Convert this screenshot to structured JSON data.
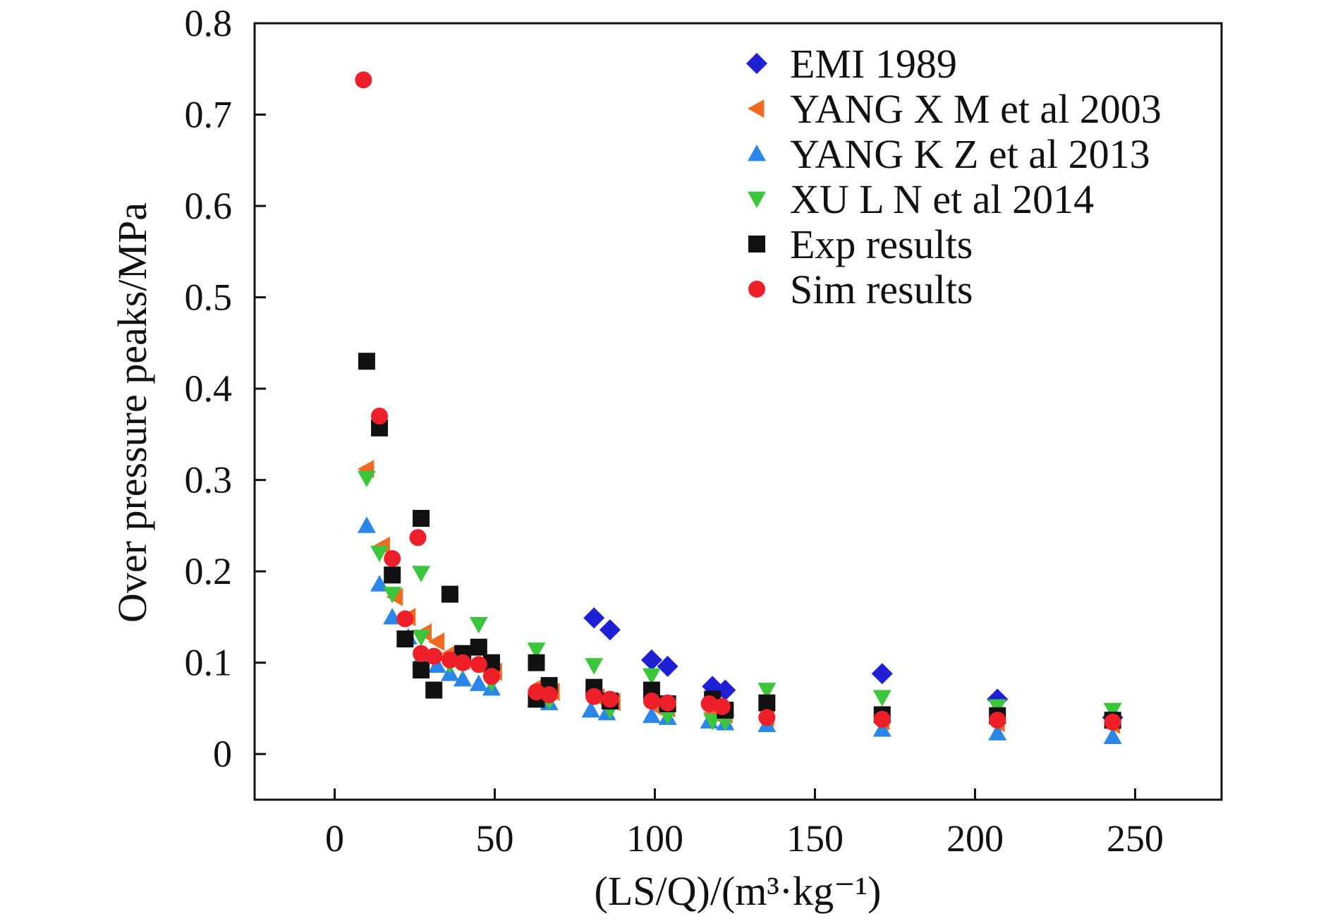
{
  "chart_data": {
    "type": "scatter",
    "title": "",
    "xlabel": "(LS/Q)/(m³·kg⁻¹)",
    "ylabel": "Over pressure peaks/MPa",
    "xlim": [
      -25,
      277
    ],
    "ylim": [
      -0.05,
      0.8
    ],
    "xticks": [
      0,
      50,
      100,
      150,
      200,
      250
    ],
    "yticks": [
      0,
      0.1,
      0.2,
      0.3,
      0.4,
      0.5,
      0.6,
      0.7,
      0.8
    ],
    "xtick_labels": [
      "0",
      "50",
      "100",
      "150",
      "200",
      "250"
    ],
    "ytick_labels": [
      "0",
      "0.1",
      "0.2",
      "0.3",
      "0.4",
      "0.5",
      "0.6",
      "0.7",
      "0.8"
    ],
    "grid": false,
    "legend_position": "top-right",
    "series": [
      {
        "name": "EMI 1989",
        "marker": "diamond",
        "color": "#1f1fd6",
        "points": [
          [
            81,
            0.149
          ],
          [
            86,
            0.136
          ],
          [
            99,
            0.103
          ],
          [
            104,
            0.096
          ],
          [
            118,
            0.074
          ],
          [
            122,
            0.07
          ],
          [
            171,
            0.088
          ],
          [
            207,
            0.06
          ],
          [
            243,
            0.04
          ]
        ]
      },
      {
        "name": "YANG X M et al 2003",
        "marker": "triangle-left",
        "color": "#f26a21",
        "points": [
          [
            10,
            0.312
          ],
          [
            15,
            0.228
          ],
          [
            19,
            0.172
          ],
          [
            23,
            0.15
          ],
          [
            28,
            0.133
          ],
          [
            32,
            0.123
          ],
          [
            36,
            0.11
          ],
          [
            40,
            0.102
          ],
          [
            45,
            0.097
          ],
          [
            50,
            0.09
          ],
          [
            64,
            0.075
          ],
          [
            68,
            0.068
          ],
          [
            82,
            0.062
          ],
          [
            87,
            0.057
          ],
          [
            100,
            0.052
          ],
          [
            104,
            0.05
          ],
          [
            118,
            0.045
          ],
          [
            122,
            0.043
          ],
          [
            135,
            0.04
          ],
          [
            171,
            0.036
          ],
          [
            207,
            0.034
          ],
          [
            243,
            0.032
          ]
        ]
      },
      {
        "name": "YANG K Z et al 2013",
        "marker": "triangle-up",
        "color": "#2a86e8",
        "points": [
          [
            10,
            0.25
          ],
          [
            14,
            0.186
          ],
          [
            18,
            0.15
          ],
          [
            23,
            0.128
          ],
          [
            27,
            0.105
          ],
          [
            32,
            0.097
          ],
          [
            36,
            0.088
          ],
          [
            40,
            0.082
          ],
          [
            45,
            0.077
          ],
          [
            49,
            0.072
          ],
          [
            63,
            0.06
          ],
          [
            67,
            0.056
          ],
          [
            80,
            0.048
          ],
          [
            85,
            0.045
          ],
          [
            99,
            0.042
          ],
          [
            104,
            0.04
          ],
          [
            117,
            0.036
          ],
          [
            122,
            0.034
          ],
          [
            135,
            0.032
          ],
          [
            171,
            0.027
          ],
          [
            207,
            0.023
          ],
          [
            243,
            0.019
          ]
        ]
      },
      {
        "name": "XU L N et al 2014",
        "marker": "triangle-down",
        "color": "#3cc63c",
        "points": [
          [
            10,
            0.302
          ],
          [
            14,
            0.22
          ],
          [
            18,
            0.175
          ],
          [
            27,
            0.198
          ],
          [
            27,
            0.128
          ],
          [
            36,
            0.098
          ],
          [
            40,
            0.098
          ],
          [
            45,
            0.142
          ],
          [
            49,
            0.078
          ],
          [
            63,
            0.114
          ],
          [
            67,
            0.058
          ],
          [
            81,
            0.097
          ],
          [
            86,
            0.048
          ],
          [
            99,
            0.086
          ],
          [
            104,
            0.042
          ],
          [
            118,
            0.036
          ],
          [
            122,
            0.035
          ],
          [
            135,
            0.07
          ],
          [
            171,
            0.062
          ],
          [
            207,
            0.052
          ],
          [
            243,
            0.048
          ]
        ]
      },
      {
        "name": "Exp results",
        "marker": "square",
        "color": "#111111",
        "points": [
          [
            10,
            0.43
          ],
          [
            14,
            0.357
          ],
          [
            18,
            0.196
          ],
          [
            22,
            0.126
          ],
          [
            27,
            0.258
          ],
          [
            27,
            0.092
          ],
          [
            31,
            0.07
          ],
          [
            36,
            0.175
          ],
          [
            40,
            0.11
          ],
          [
            45,
            0.117
          ],
          [
            49,
            0.1
          ],
          [
            63,
            0.1
          ],
          [
            63,
            0.06
          ],
          [
            67,
            0.075
          ],
          [
            81,
            0.073
          ],
          [
            86,
            0.058
          ],
          [
            99,
            0.07
          ],
          [
            104,
            0.055
          ],
          [
            118,
            0.06
          ],
          [
            122,
            0.048
          ],
          [
            135,
            0.056
          ],
          [
            171,
            0.043
          ],
          [
            207,
            0.042
          ],
          [
            243,
            0.037
          ]
        ]
      },
      {
        "name": "Sim results",
        "marker": "circle",
        "color": "#ef1f2a",
        "points": [
          [
            9,
            0.738
          ],
          [
            14,
            0.37
          ],
          [
            18,
            0.214
          ],
          [
            22,
            0.148
          ],
          [
            26,
            0.237
          ],
          [
            27,
            0.11
          ],
          [
            31,
            0.107
          ],
          [
            36,
            0.103
          ],
          [
            40,
            0.1
          ],
          [
            45,
            0.098
          ],
          [
            49,
            0.085
          ],
          [
            63,
            0.068
          ],
          [
            67,
            0.065
          ],
          [
            81,
            0.063
          ],
          [
            86,
            0.06
          ],
          [
            99,
            0.058
          ],
          [
            104,
            0.056
          ],
          [
            117,
            0.055
          ],
          [
            121,
            0.052
          ],
          [
            135,
            0.04
          ],
          [
            171,
            0.038
          ],
          [
            207,
            0.037
          ],
          [
            243,
            0.035
          ]
        ]
      }
    ]
  }
}
